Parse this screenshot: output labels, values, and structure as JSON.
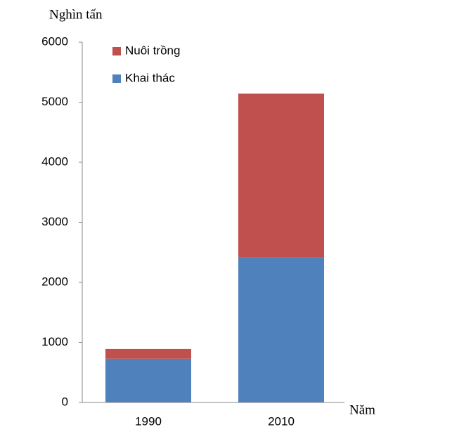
{
  "chart_data": {
    "type": "stacked-bar",
    "y_label": "Nghìn tấn",
    "x_label": "Năm",
    "categories": [
      "1990",
      "2010"
    ],
    "series": [
      {
        "name": "Khai thác",
        "color": "#4f81bd",
        "values": [
          728,
          2414
        ]
      },
      {
        "name": "Nuôi trồng",
        "color": "#c0504d",
        "values": [
          162,
          2728
        ]
      }
    ],
    "ylim": [
      0,
      6000
    ],
    "yticks": [
      0,
      1000,
      2000,
      3000,
      4000,
      5000,
      6000
    ],
    "grid": false,
    "legend": "top-left"
  }
}
